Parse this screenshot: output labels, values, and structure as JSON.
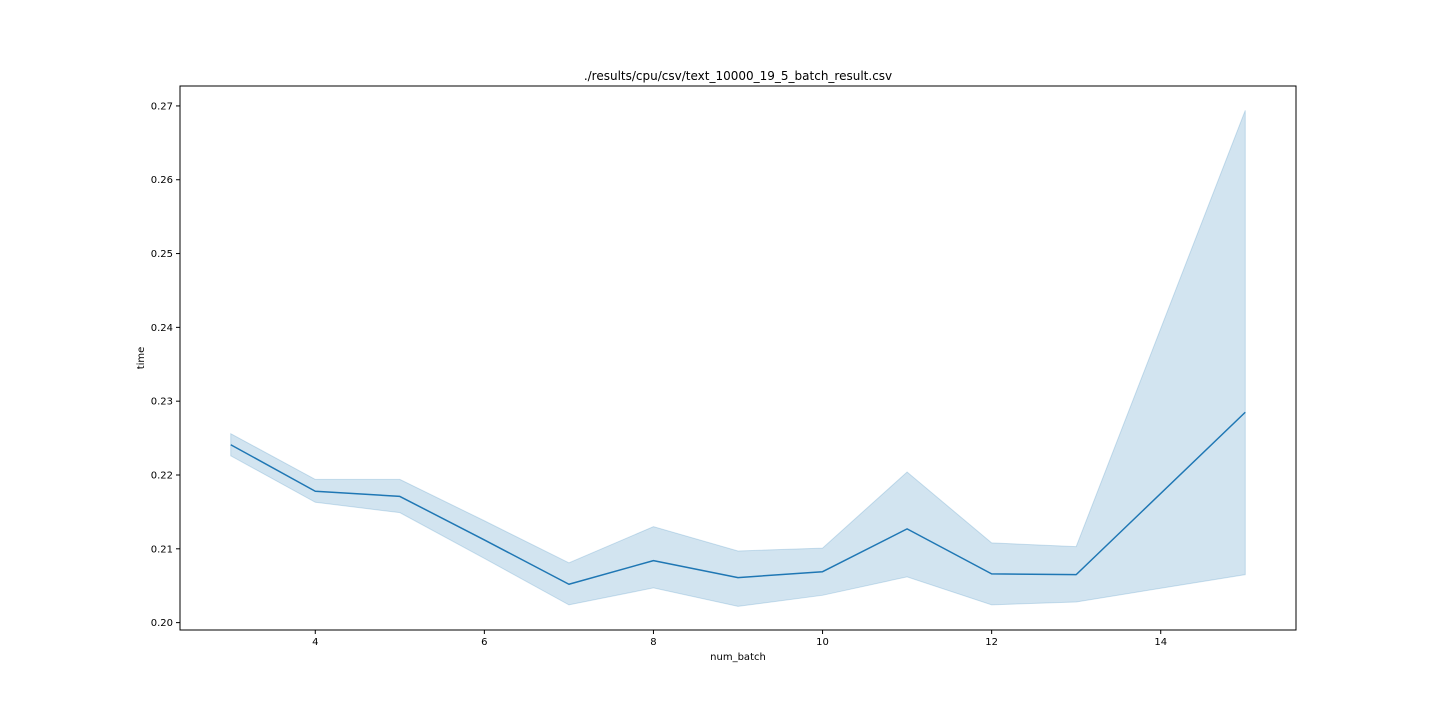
{
  "chart_data": {
    "type": "line",
    "title": "./results/cpu/csv/text_10000_19_5_batch_result.csv",
    "xlabel": "num_batch",
    "ylabel": "time",
    "xlim": [
      2.4,
      15.6
    ],
    "ylim": [
      0.199,
      0.2727
    ],
    "xticks": [
      4,
      6,
      8,
      10,
      12,
      14
    ],
    "xtick_labels": [
      "4",
      "6",
      "8",
      "10",
      "12",
      "14"
    ],
    "yticks": [
      0.2,
      0.21,
      0.22,
      0.23,
      0.24,
      0.25,
      0.26,
      0.27
    ],
    "ytick_labels": [
      "0.20",
      "0.21",
      "0.22",
      "0.23",
      "0.24",
      "0.25",
      "0.26",
      "0.27"
    ],
    "grid": false,
    "legend": "none",
    "series": [
      {
        "x": [
          3,
          4,
          5,
          6,
          7,
          8,
          9,
          10,
          11,
          12,
          13,
          15
        ],
        "values": [
          0.2241,
          0.2178,
          0.2171,
          0.2112,
          0.2052,
          0.2084,
          0.2061,
          0.2069,
          0.2127,
          0.2066,
          0.2065,
          0.2285
        ],
        "ci_lower": [
          0.2226,
          0.2163,
          0.2149,
          0.2087,
          0.2024,
          0.2047,
          0.2022,
          0.2037,
          0.2062,
          0.2024,
          0.2028,
          0.2065
        ],
        "ci_upper": [
          0.2256,
          0.2194,
          0.2194,
          0.2138,
          0.2081,
          0.213,
          0.2097,
          0.2101,
          0.2204,
          0.2108,
          0.2103,
          0.2694
        ],
        "color": "#1f77b4",
        "band_color": "#1f77b4"
      }
    ]
  }
}
